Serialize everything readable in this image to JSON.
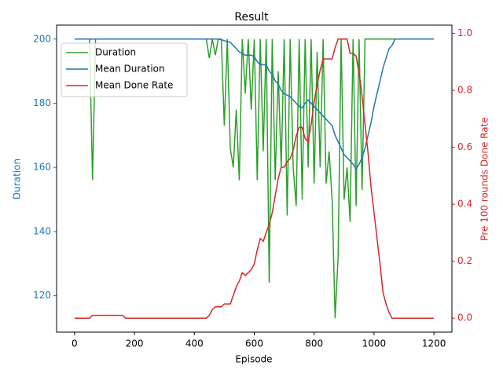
{
  "chart_data": {
    "type": "line",
    "title": "Result",
    "xlabel": "Episode",
    "ylabel": "Duration",
    "y2label": "Pre 100 rounds Done Rate",
    "x": [
      0,
      10,
      20,
      30,
      40,
      50,
      60,
      70,
      80,
      90,
      100,
      110,
      120,
      130,
      140,
      150,
      160,
      170,
      180,
      190,
      200,
      210,
      220,
      230,
      240,
      250,
      260,
      270,
      280,
      290,
      300,
      310,
      320,
      330,
      340,
      350,
      360,
      370,
      380,
      390,
      400,
      410,
      420,
      430,
      440,
      450,
      460,
      470,
      480,
      490,
      500,
      510,
      520,
      530,
      540,
      550,
      560,
      570,
      580,
      590,
      600,
      610,
      620,
      630,
      640,
      650,
      660,
      670,
      680,
      690,
      700,
      710,
      720,
      730,
      740,
      750,
      760,
      770,
      780,
      790,
      800,
      810,
      820,
      830,
      840,
      850,
      860,
      870,
      880,
      890,
      900,
      910,
      920,
      930,
      940,
      950,
      960,
      970,
      980,
      990,
      1000,
      1010,
      1020,
      1030,
      1040,
      1050,
      1060,
      1070,
      1080,
      1090,
      1100,
      1110,
      1120,
      1130,
      1140,
      1150,
      1160,
      1170,
      1180,
      1190,
      1200
    ],
    "series": [
      {
        "name": "Duration",
        "color": "#2ca02c",
        "axis": "y",
        "values": [
          200,
          200,
          200,
          200,
          200,
          200,
          156,
          200,
          200,
          200,
          200,
          200,
          200,
          200,
          200,
          200,
          200,
          200,
          200,
          200,
          200,
          200,
          200,
          200,
          200,
          200,
          200,
          200,
          200,
          200,
          200,
          200,
          200,
          200,
          200,
          200,
          200,
          200,
          200,
          200,
          200,
          200,
          200,
          200,
          200,
          194,
          200,
          195,
          200,
          200,
          173,
          200,
          166,
          160,
          178,
          156,
          200,
          183,
          200,
          178,
          200,
          156,
          200,
          165,
          200,
          124,
          200,
          156,
          190,
          160,
          200,
          145,
          200,
          160,
          148,
          200,
          150,
          200,
          160,
          200,
          155,
          196,
          160,
          200,
          155,
          165,
          150,
          113,
          132,
          200,
          150,
          160,
          143,
          200,
          148,
          200,
          153,
          200,
          200,
          200,
          200,
          200,
          200,
          200,
          200,
          200,
          200,
          200,
          200,
          200,
          200,
          200,
          200,
          200,
          200,
          200,
          200,
          200,
          200,
          200,
          200
        ]
      },
      {
        "name": "Mean Duration",
        "color": "#1f77b4",
        "axis": "y",
        "values": [
          200,
          200,
          200,
          200,
          200,
          200,
          200,
          200,
          200,
          200,
          200,
          200,
          200,
          200,
          200,
          200,
          200,
          200,
          200,
          200,
          200,
          200,
          200,
          200,
          200,
          200,
          200,
          200,
          200,
          200,
          200,
          200,
          200,
          200,
          200,
          200,
          200,
          200,
          200,
          200,
          200,
          200,
          200,
          200,
          200,
          200,
          200,
          200,
          200,
          199.8,
          199.5,
          199.2,
          199,
          198,
          197,
          196,
          195.5,
          195,
          195,
          195,
          194.5,
          193,
          192,
          192,
          192,
          190,
          189,
          187,
          186,
          184,
          183,
          182.5,
          182,
          181,
          180,
          179,
          178.5,
          180,
          181,
          180,
          179,
          178,
          177,
          176,
          175,
          174,
          173,
          170,
          168,
          166,
          164,
          163,
          162,
          161,
          159.5,
          161,
          163,
          166,
          170,
          174,
          179,
          183,
          187,
          191,
          194,
          197,
          198,
          200,
          200,
          200,
          200,
          200,
          200,
          200,
          200,
          200,
          200,
          200,
          200,
          200,
          200
        ]
      },
      {
        "name": "Mean Done Rate",
        "color": "#d62728",
        "axis": "y2",
        "values": [
          0,
          0,
          0,
          0,
          0,
          0,
          0.01,
          0.01,
          0.01,
          0.01,
          0.01,
          0.01,
          0.01,
          0.01,
          0.01,
          0.01,
          0.01,
          0,
          0,
          0,
          0,
          0,
          0,
          0,
          0,
          0,
          0,
          0,
          0,
          0,
          0,
          0,
          0,
          0,
          0,
          0,
          0,
          0,
          0,
          0,
          0,
          0,
          0,
          0,
          0,
          0.01,
          0.03,
          0.04,
          0.04,
          0.04,
          0.05,
          0.05,
          0.05,
          0.08,
          0.11,
          0.13,
          0.16,
          0.15,
          0.16,
          0.17,
          0.19,
          0.24,
          0.28,
          0.27,
          0.3,
          0.33,
          0.37,
          0.43,
          0.49,
          0.53,
          0.53,
          0.55,
          0.56,
          0.59,
          0.64,
          0.67,
          0.67,
          0.63,
          0.62,
          0.68,
          0.76,
          0.82,
          0.87,
          0.91,
          0.91,
          0.91,
          0.91,
          0.95,
          0.98,
          0.98,
          0.98,
          0.98,
          0.93,
          0.93,
          0.92,
          0.86,
          0.78,
          0.68,
          0.58,
          0.46,
          0.37,
          0.28,
          0.19,
          0.09,
          0.05,
          0.02,
          0,
          0,
          0,
          0,
          0,
          0,
          0,
          0,
          0,
          0,
          0,
          0,
          0,
          0,
          0
        ]
      }
    ],
    "xlim": [
      -60,
      1260
    ],
    "xticks": [
      0,
      200,
      400,
      600,
      800,
      1000,
      1200
    ],
    "ylim": [
      108.65,
      204.35
    ],
    "yticks": [
      120,
      140,
      160,
      180,
      200
    ],
    "y2lim": [
      -0.049,
      1.029
    ],
    "y2ticks": [
      {
        "value": 0,
        "label": "0.0"
      },
      0.2,
      0.4,
      0.6,
      0.8,
      {
        "value": 1,
        "label": "1.0"
      }
    ],
    "legend": "upper left"
  }
}
